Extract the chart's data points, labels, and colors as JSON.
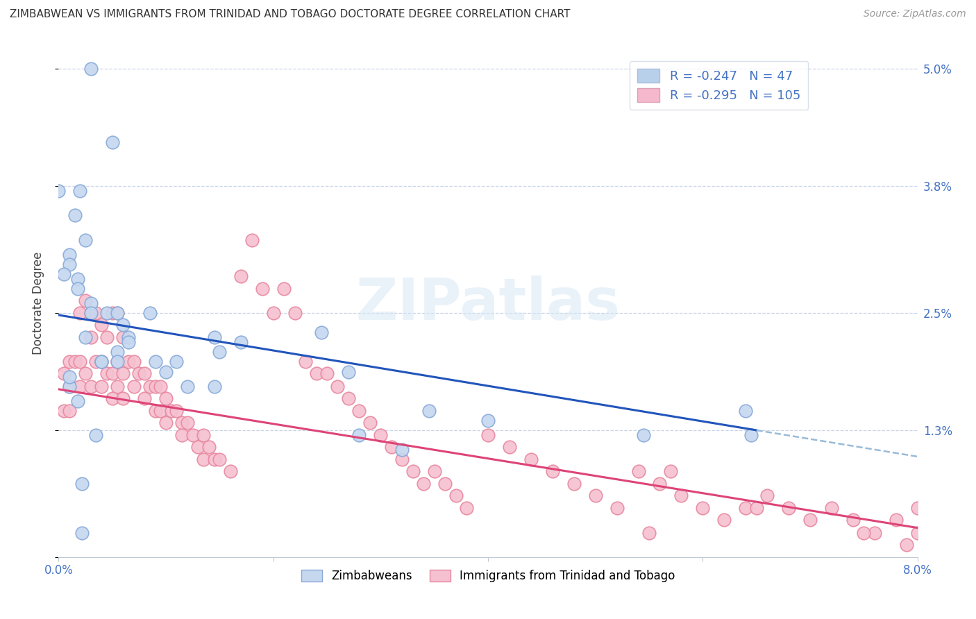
{
  "title": "ZIMBABWEAN VS IMMIGRANTS FROM TRINIDAD AND TOBAGO DOCTORATE DEGREE CORRELATION CHART",
  "source": "Source: ZipAtlas.com",
  "ylabel": "Doctorate Degree",
  "xlim": [
    0.0,
    8.0
  ],
  "ylim": [
    0.0,
    5.2
  ],
  "yticks": [
    0.0,
    1.3,
    2.5,
    3.8,
    5.0
  ],
  "ytick_labels": [
    "",
    "1.3%",
    "2.5%",
    "3.8%",
    "5.0%"
  ],
  "xticks": [
    0.0,
    2.0,
    4.0,
    6.0,
    8.0
  ],
  "xtick_labels": [
    "0.0%",
    "",
    "",
    "",
    "8.0%"
  ],
  "legend_label1": "R = -0.247   N =  47",
  "legend_label2": "R = -0.295   N = 105",
  "legend_color1": "#b8d0ea",
  "legend_color2": "#f5b8cc",
  "watermark": "ZIPatlas",
  "blue_color": "#4472c4",
  "pink_color": "#e06080",
  "dot_blue_face": "#c5d8f0",
  "dot_blue_edge": "#88aad8",
  "dot_pink_face": "#f5c0d0",
  "dot_pink_edge": "#e888a0",
  "trend_blue": "#2255bb",
  "trend_pink": "#dd4477",
  "trend_blue_ext": "#99bbd8",
  "blue_r": "-0.247",
  "blue_n": "47",
  "pink_r": "-0.295",
  "pink_n": "105",
  "zim_x": [
    0.3,
    0.5,
    0.0,
    0.2,
    0.15,
    0.25,
    0.1,
    0.1,
    0.05,
    0.18,
    0.18,
    0.3,
    0.3,
    0.45,
    0.55,
    0.6,
    0.25,
    0.65,
    0.65,
    0.55,
    0.55,
    0.4,
    0.9,
    0.85,
    1.45,
    1.5,
    1.7,
    2.45,
    1.1,
    1.0,
    1.2,
    1.45,
    2.7,
    2.8,
    3.45,
    3.2,
    4.0,
    5.45,
    6.4,
    6.45,
    0.1,
    0.1,
    0.18,
    0.22,
    0.22,
    0.35,
    0.4
  ],
  "zim_y": [
    5.0,
    4.25,
    3.75,
    3.75,
    3.5,
    3.25,
    3.1,
    3.0,
    2.9,
    2.85,
    2.75,
    2.6,
    2.5,
    2.5,
    2.5,
    2.38,
    2.25,
    2.25,
    2.2,
    2.1,
    2.0,
    2.0,
    2.0,
    2.5,
    2.25,
    2.1,
    2.2,
    2.3,
    2.0,
    1.9,
    1.75,
    1.75,
    1.9,
    1.25,
    1.5,
    1.1,
    1.4,
    1.25,
    1.5,
    1.25,
    1.75,
    1.85,
    1.6,
    0.75,
    0.25,
    1.25,
    2.0
  ],
  "trin_x": [
    0.05,
    0.05,
    0.1,
    0.1,
    0.1,
    0.15,
    0.2,
    0.2,
    0.2,
    0.25,
    0.25,
    0.3,
    0.3,
    0.3,
    0.35,
    0.35,
    0.4,
    0.4,
    0.4,
    0.45,
    0.45,
    0.5,
    0.5,
    0.5,
    0.55,
    0.55,
    0.55,
    0.6,
    0.6,
    0.6,
    0.65,
    0.7,
    0.7,
    0.75,
    0.8,
    0.8,
    0.85,
    0.9,
    0.9,
    0.95,
    0.95,
    1.0,
    1.0,
    1.05,
    1.1,
    1.15,
    1.15,
    1.2,
    1.25,
    1.3,
    1.35,
    1.35,
    1.4,
    1.45,
    1.5,
    1.6,
    1.7,
    1.8,
    1.9,
    2.0,
    2.1,
    2.2,
    2.3,
    2.4,
    2.5,
    2.6,
    2.7,
    2.8,
    2.9,
    3.0,
    3.1,
    3.2,
    3.3,
    3.4,
    3.5,
    3.6,
    3.7,
    3.8,
    4.0,
    4.2,
    4.4,
    4.6,
    4.8,
    5.0,
    5.2,
    5.4,
    5.6,
    5.8,
    6.0,
    6.2,
    6.4,
    6.6,
    6.8,
    7.0,
    7.2,
    7.4,
    7.6,
    7.8,
    8.0,
    8.0,
    5.5,
    5.7,
    6.5,
    7.5,
    7.9
  ],
  "trin_y": [
    1.88,
    1.5,
    2.0,
    1.75,
    1.5,
    2.0,
    2.5,
    2.0,
    1.75,
    2.63,
    1.88,
    2.5,
    2.25,
    1.75,
    2.5,
    2.0,
    2.38,
    2.0,
    1.75,
    2.25,
    1.88,
    2.5,
    1.88,
    1.63,
    2.5,
    2.0,
    1.75,
    2.25,
    1.88,
    1.63,
    2.0,
    2.0,
    1.75,
    1.88,
    1.88,
    1.63,
    1.75,
    1.75,
    1.5,
    1.75,
    1.5,
    1.63,
    1.38,
    1.5,
    1.5,
    1.38,
    1.25,
    1.38,
    1.25,
    1.13,
    1.25,
    1.0,
    1.13,
    1.0,
    1.0,
    0.88,
    2.88,
    3.25,
    2.75,
    2.5,
    2.75,
    2.5,
    2.0,
    1.88,
    1.88,
    1.75,
    1.63,
    1.5,
    1.38,
    1.25,
    1.13,
    1.0,
    0.88,
    0.75,
    0.88,
    0.75,
    0.63,
    0.5,
    1.25,
    1.13,
    1.0,
    0.88,
    0.75,
    0.63,
    0.5,
    0.88,
    0.75,
    0.63,
    0.5,
    0.38,
    0.5,
    0.63,
    0.5,
    0.38,
    0.5,
    0.38,
    0.25,
    0.38,
    0.25,
    0.5,
    0.25,
    0.88,
    0.5,
    0.25,
    0.13
  ],
  "trend_blue_x0": 0.0,
  "trend_blue_y0": 2.48,
  "trend_blue_x1": 6.5,
  "trend_blue_y1": 1.3,
  "trend_blue_ext_x1": 8.0,
  "trend_blue_ext_y1": 1.03,
  "trend_pink_x0": 0.0,
  "trend_pink_y0": 1.72,
  "trend_pink_x1": 8.0,
  "trend_pink_y1": 0.3
}
